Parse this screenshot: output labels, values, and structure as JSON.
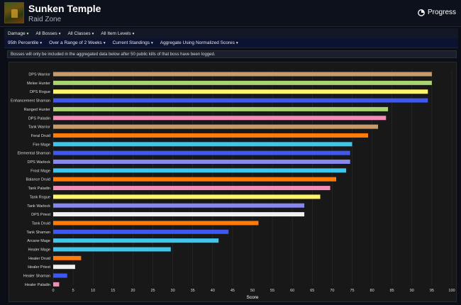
{
  "header": {
    "title": "Sunken Temple",
    "subtitle": "Raid Zone",
    "progress_label": "Progress"
  },
  "filters_row1": [
    {
      "label": "Damage"
    },
    {
      "label": "All Bosses"
    },
    {
      "label": "All Classes"
    },
    {
      "label": "All Item Levels"
    }
  ],
  "filters_row2": [
    {
      "label": "95th Percentile"
    },
    {
      "label": "Over a Range of 2 Weeks"
    },
    {
      "label": "Current Standings"
    },
    {
      "label": "Aggregate Using Normalized Scores"
    }
  ],
  "notice": "Bosses will only be included in the aggregated data below after 50 public kills of that boss have been logged.",
  "colors": {
    "background": "#0b0e17",
    "chart_bg": "#181818",
    "grid": "#2e2e2e"
  },
  "chart_data": {
    "type": "bar",
    "orientation": "horizontal",
    "xlabel": "Score",
    "xlim": [
      0,
      100
    ],
    "xticks": [
      0,
      5,
      10,
      15,
      20,
      25,
      30,
      35,
      40,
      45,
      50,
      55,
      60,
      65,
      70,
      75,
      80,
      85,
      90,
      95,
      100
    ],
    "grid": true,
    "categories": [
      "DPS Warrior",
      "Melee Hunter",
      "DPS Rogue",
      "Enhancement Shaman",
      "Ranged Hunter",
      "DPS Paladin",
      "Tank Warrior",
      "Feral Druid",
      "Fire Mage",
      "Elemental Shaman",
      "DPS Warlock",
      "Frost Mage",
      "Balance Druid",
      "Tank Paladin",
      "Tank Rogue",
      "Tank Warlock",
      "DPS Priest",
      "Tank Druid",
      "Tank Shaman",
      "Arcane Mage",
      "Healer Mage",
      "Healer Druid",
      "Healer Priest",
      "Healer Shaman",
      "Healer Paladin"
    ],
    "values": [
      95,
      95,
      94,
      94,
      84,
      83.5,
      81.5,
      79,
      75,
      74.5,
      74.5,
      73.5,
      71,
      69.5,
      67,
      63,
      63,
      51.5,
      44,
      41.5,
      29.5,
      7,
      5.5,
      3.5,
      1.5
    ],
    "colors": [
      "#c69b6d",
      "#aad372",
      "#fff468",
      "#3e58f0",
      "#aad372",
      "#f48cba",
      "#c69b6d",
      "#ff7c0a",
      "#3fc7eb",
      "#3e58f0",
      "#8788ee",
      "#3fc7eb",
      "#ff7c0a",
      "#f48cba",
      "#fff468",
      "#8788ee",
      "#f0f0f0",
      "#ff7c0a",
      "#3e58f0",
      "#3fc7eb",
      "#3fc7eb",
      "#ff7c0a",
      "#f0f0f0",
      "#3e58f0",
      "#f48cba"
    ]
  }
}
